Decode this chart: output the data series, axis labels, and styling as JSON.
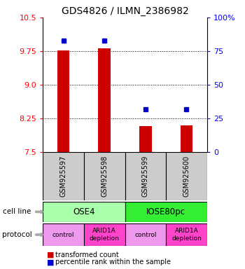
{
  "title": "GDS4826 / ILMN_2386982",
  "samples": [
    "GSM925597",
    "GSM925598",
    "GSM925599",
    "GSM925600"
  ],
  "red_values": [
    9.77,
    9.81,
    8.07,
    8.09
  ],
  "blue_values_pct": [
    83,
    83,
    32,
    32
  ],
  "ylim": [
    7.5,
    10.5
  ],
  "yticks_left": [
    7.5,
    8.25,
    9.0,
    9.75,
    10.5
  ],
  "yticks_right_pct": [
    0,
    25,
    50,
    75,
    100
  ],
  "cell_lines": [
    {
      "label": "OSE4",
      "cols": [
        0,
        1
      ],
      "color": "#aaffaa"
    },
    {
      "label": "IOSE80pc",
      "cols": [
        2,
        3
      ],
      "color": "#33ee33"
    }
  ],
  "protocols": [
    {
      "label": "control",
      "col": 0,
      "color": "#ee99ee"
    },
    {
      "label": "ARID1A\ndepletion",
      "col": 1,
      "color": "#ff44cc"
    },
    {
      "label": "control",
      "col": 2,
      "color": "#ee99ee"
    },
    {
      "label": "ARID1A\ndepletion",
      "col": 3,
      "color": "#ff44cc"
    }
  ],
  "legend_red_label": "transformed count",
  "legend_blue_label": "percentile rank within the sample",
  "bar_color": "#cc0000",
  "dot_color": "#0000cc",
  "bar_bottom": 7.5,
  "sample_box_color": "#cccccc",
  "title_fontsize": 10,
  "tick_fontsize": 8,
  "bar_width": 0.3
}
